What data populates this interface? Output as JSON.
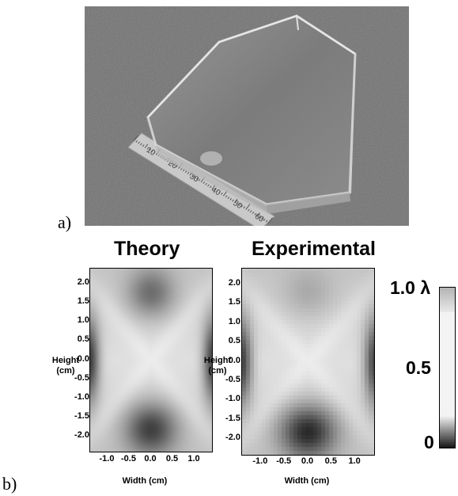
{
  "panels": {
    "a": "a)",
    "b": "b)"
  },
  "plots": [
    {
      "title": "Theory"
    },
    {
      "title": "Experimental"
    }
  ],
  "axes": {
    "xlabel": "Width (cm)",
    "ylabel_line1": "Height",
    "ylabel_line2": "(cm)",
    "xticks": [
      "-1.0",
      "-0.5",
      "0.0",
      "0.5",
      "1.0"
    ],
    "yticks": [
      "2.0",
      "1.5",
      "1.0",
      "0.5",
      "0.0",
      "-0.5",
      "-1.0",
      "-1.5",
      "-2.0"
    ]
  },
  "colorbar": {
    "top": "1.0 λ",
    "mid": "0.5",
    "bottom": "0"
  },
  "photo": {
    "ruler_marks": [
      "10",
      "20",
      "30",
      "40",
      "50",
      "60"
    ]
  },
  "chart_data": [
    {
      "type": "heatmap",
      "title": "Theory",
      "xlabel": "Width (cm)",
      "ylabel": "Height (cm)",
      "xlim": [
        -1.4,
        1.4
      ],
      "ylim": [
        -2.4,
        2.4
      ],
      "colorbar_range": [
        0,
        1.0
      ],
      "colorbar_unit": "λ"
    },
    {
      "type": "heatmap",
      "title": "Experimental",
      "xlabel": "Width (cm)",
      "ylabel": "Height (cm)",
      "xlim": [
        -1.4,
        1.4
      ],
      "ylim": [
        -2.4,
        2.4
      ],
      "colorbar_range": [
        0,
        1.0
      ],
      "colorbar_unit": "λ"
    }
  ]
}
